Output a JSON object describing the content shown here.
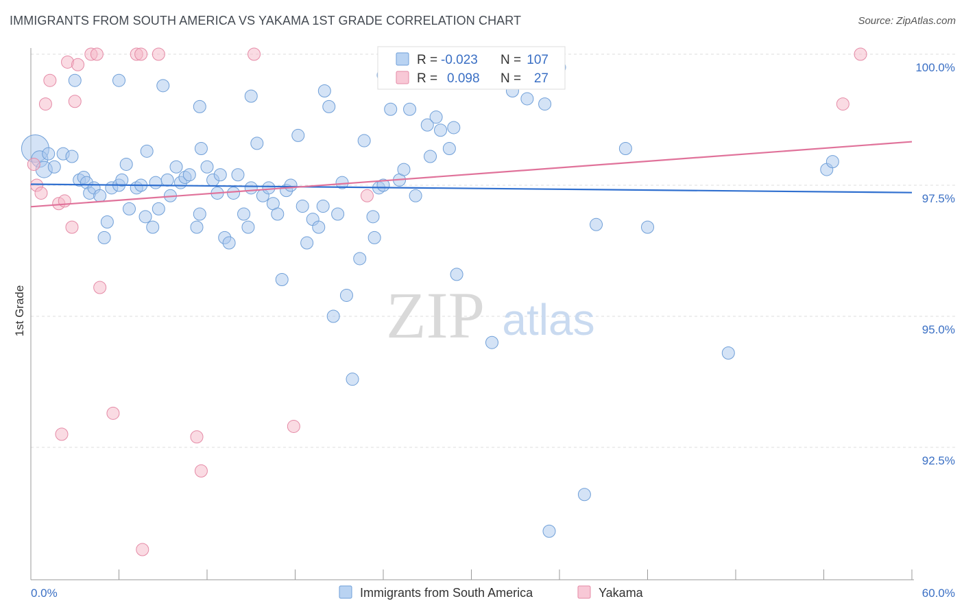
{
  "header": {
    "title": "IMMIGRANTS FROM SOUTH AMERICA VS YAKAMA 1ST GRADE CORRELATION CHART",
    "source": "Source: ZipAtlas.com"
  },
  "watermark": {
    "zip": "ZIP",
    "atlas": "atlas"
  },
  "stats": {
    "series1": {
      "r_label": "R =",
      "r_value": "-0.023",
      "n_label": "N =",
      "n_value": "107"
    },
    "series2": {
      "r_label": "R =",
      "r_value": "0.098",
      "n_label": "N =",
      "n_value": "27"
    }
  },
  "colors": {
    "blue_fill": "#a9c8ee",
    "blue_stroke": "#6f9fd8",
    "blue_line": "#2f6fcf",
    "pink_fill": "#f6b7c8",
    "pink_stroke": "#e58aa6",
    "pink_line": "#e0729a",
    "value_text": "#3a6fc4",
    "grid": "#dcdcdc"
  },
  "chart_data": {
    "type": "scatter",
    "title": "IMMIGRANTS FROM SOUTH AMERICA VS YAKAMA 1ST GRADE CORRELATION CHART",
    "xlabel": "",
    "ylabel": "1st Grade",
    "xlim": [
      0,
      60
    ],
    "ylim": [
      90.0,
      100.2
    ],
    "x_tick_labels": [
      "0.0%",
      "60.0%"
    ],
    "y_ticks": [
      100.0,
      97.5,
      95.0,
      92.5
    ],
    "y_tick_labels": [
      "100.0%",
      "97.5%",
      "95.0%",
      "92.5%"
    ],
    "legend_position": "bottom-center",
    "series": [
      {
        "name": "Immigrants from South America",
        "color": "blue",
        "trend": {
          "x0": 0,
          "y0": 97.52,
          "x1": 60,
          "y1": 97.36
        },
        "points": [
          [
            0.3,
            98.2
          ],
          [
            0.6,
            98.0
          ],
          [
            0.9,
            97.8
          ],
          [
            1.2,
            98.1
          ],
          [
            1.6,
            97.85
          ],
          [
            2.2,
            98.1
          ],
          [
            2.8,
            98.05
          ],
          [
            3.3,
            97.6
          ],
          [
            3.6,
            97.65
          ],
          [
            3.8,
            97.55
          ],
          [
            4.0,
            97.35
          ],
          [
            4.3,
            97.45
          ],
          [
            4.7,
            97.3
          ],
          [
            5.0,
            96.5
          ],
          [
            5.2,
            96.8
          ],
          [
            5.5,
            97.45
          ],
          [
            6.0,
            97.5
          ],
          [
            6.2,
            97.6
          ],
          [
            6.5,
            97.9
          ],
          [
            6.7,
            97.05
          ],
          [
            7.2,
            97.45
          ],
          [
            7.5,
            97.5
          ],
          [
            7.8,
            96.9
          ],
          [
            7.9,
            98.15
          ],
          [
            8.3,
            96.7
          ],
          [
            8.5,
            97.55
          ],
          [
            8.7,
            97.05
          ],
          [
            9.3,
            97.6
          ],
          [
            9.5,
            97.3
          ],
          [
            9.9,
            97.85
          ],
          [
            10.2,
            97.55
          ],
          [
            10.5,
            97.65
          ],
          [
            10.8,
            97.7
          ],
          [
            11.3,
            96.7
          ],
          [
            11.5,
            96.95
          ],
          [
            11.6,
            98.2
          ],
          [
            12.0,
            97.85
          ],
          [
            12.4,
            97.6
          ],
          [
            12.7,
            97.35
          ],
          [
            12.9,
            97.7
          ],
          [
            13.2,
            96.5
          ],
          [
            13.5,
            96.4
          ],
          [
            13.8,
            97.35
          ],
          [
            14.1,
            97.7
          ],
          [
            14.5,
            96.95
          ],
          [
            14.8,
            96.7
          ],
          [
            15.0,
            97.45
          ],
          [
            15.4,
            98.3
          ],
          [
            15.8,
            97.3
          ],
          [
            16.2,
            97.45
          ],
          [
            16.5,
            97.15
          ],
          [
            16.8,
            96.95
          ],
          [
            17.1,
            95.7
          ],
          [
            17.4,
            97.4
          ],
          [
            17.7,
            97.5
          ],
          [
            18.2,
            98.45
          ],
          [
            18.5,
            97.1
          ],
          [
            18.8,
            96.4
          ],
          [
            19.2,
            96.85
          ],
          [
            19.6,
            96.7
          ],
          [
            19.9,
            97.1
          ],
          [
            20.3,
            99.0
          ],
          [
            20.6,
            95.0
          ],
          [
            20.9,
            96.95
          ],
          [
            21.2,
            97.55
          ],
          [
            21.5,
            95.4
          ],
          [
            21.9,
            93.8
          ],
          [
            22.4,
            96.1
          ],
          [
            22.7,
            98.35
          ],
          [
            23.3,
            96.9
          ],
          [
            23.4,
            96.5
          ],
          [
            23.7,
            97.45
          ],
          [
            24.0,
            97.5
          ],
          [
            24.5,
            98.95
          ],
          [
            25.1,
            97.6
          ],
          [
            25.4,
            97.8
          ],
          [
            25.8,
            98.95
          ],
          [
            26.2,
            97.3
          ],
          [
            27.0,
            98.65
          ],
          [
            27.2,
            98.05
          ],
          [
            27.6,
            98.8
          ],
          [
            27.9,
            98.55
          ],
          [
            28.5,
            98.2
          ],
          [
            28.8,
            98.6
          ],
          [
            29.0,
            95.8
          ],
          [
            30.2,
            99.9
          ],
          [
            31.4,
            94.5
          ],
          [
            32.0,
            99.85
          ],
          [
            32.8,
            99.3
          ],
          [
            33.8,
            99.15
          ],
          [
            35.0,
            99.05
          ],
          [
            35.3,
            90.9
          ],
          [
            36.0,
            99.75
          ],
          [
            37.7,
            91.6
          ],
          [
            38.5,
            96.75
          ],
          [
            40.5,
            98.2
          ],
          [
            42.0,
            96.7
          ],
          [
            47.5,
            94.3
          ],
          [
            54.2,
            97.8
          ],
          [
            54.6,
            97.95
          ],
          [
            11.5,
            99.0
          ],
          [
            15.0,
            99.2
          ],
          [
            20.0,
            99.3
          ],
          [
            24.0,
            99.6
          ],
          [
            9.0,
            99.4
          ],
          [
            6.0,
            99.5
          ],
          [
            3.0,
            99.5
          ]
        ]
      },
      {
        "name": "Yakama",
        "color": "pink",
        "trend": {
          "x0": 0,
          "y0": 97.09,
          "x1": 60,
          "y1": 98.33
        },
        "points": [
          [
            0.2,
            97.9
          ],
          [
            0.4,
            97.5
          ],
          [
            0.7,
            97.35
          ],
          [
            1.0,
            99.05
          ],
          [
            1.3,
            99.5
          ],
          [
            1.9,
            97.15
          ],
          [
            2.1,
            92.75
          ],
          [
            2.3,
            97.2
          ],
          [
            2.5,
            99.85
          ],
          [
            2.8,
            96.7
          ],
          [
            3.0,
            99.1
          ],
          [
            3.2,
            99.8
          ],
          [
            4.1,
            100.0
          ],
          [
            4.5,
            100.0
          ],
          [
            4.7,
            95.55
          ],
          [
            5.6,
            93.15
          ],
          [
            7.2,
            100.0
          ],
          [
            7.5,
            100.0
          ],
          [
            7.6,
            90.55
          ],
          [
            8.7,
            100.0
          ],
          [
            11.3,
            92.7
          ],
          [
            11.6,
            92.05
          ],
          [
            15.2,
            100.0
          ],
          [
            17.9,
            92.9
          ],
          [
            22.9,
            97.3
          ],
          [
            55.3,
            99.05
          ],
          [
            56.5,
            100.0
          ]
        ]
      }
    ]
  },
  "legend": {
    "items": [
      {
        "label": "Immigrants from South America"
      },
      {
        "label": "Yakama"
      }
    ]
  }
}
